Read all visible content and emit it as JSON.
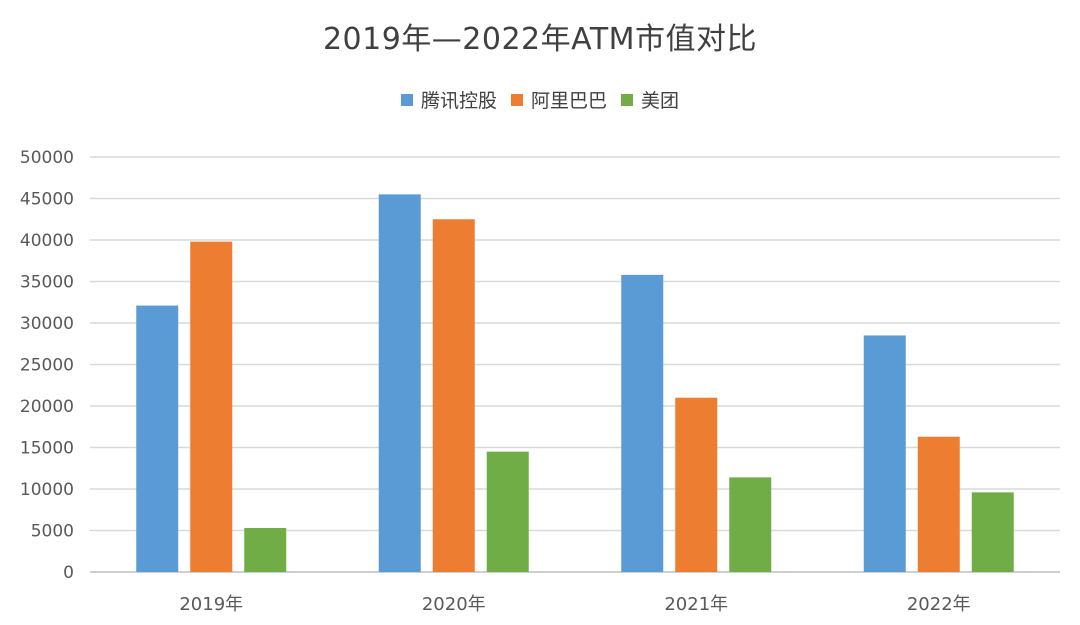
{
  "chart_data": {
    "type": "bar",
    "title": "2019年—2022年ATM市值对比",
    "categories": [
      "2019年",
      "2020年",
      "2021年",
      "2022年"
    ],
    "series": [
      {
        "name": "腾讯控股",
        "color": "#5b9bd5",
        "values": [
          32100,
          45500,
          35800,
          28500
        ]
      },
      {
        "name": "阿里巴巴",
        "color": "#ed7d31",
        "values": [
          39800,
          42500,
          21000,
          16300
        ]
      },
      {
        "name": "美团",
        "color": "#70ad47",
        "values": [
          5300,
          14500,
          11400,
          9600
        ]
      }
    ],
    "ylim": [
      0,
      50000
    ],
    "yticks": [
      "0",
      "5000",
      "10000",
      "15000",
      "20000",
      "25000",
      "30000",
      "35000",
      "40000",
      "45000",
      "50000"
    ],
    "grid": true,
    "legend_position": "top-center",
    "xlabel": "",
    "ylabel": ""
  }
}
